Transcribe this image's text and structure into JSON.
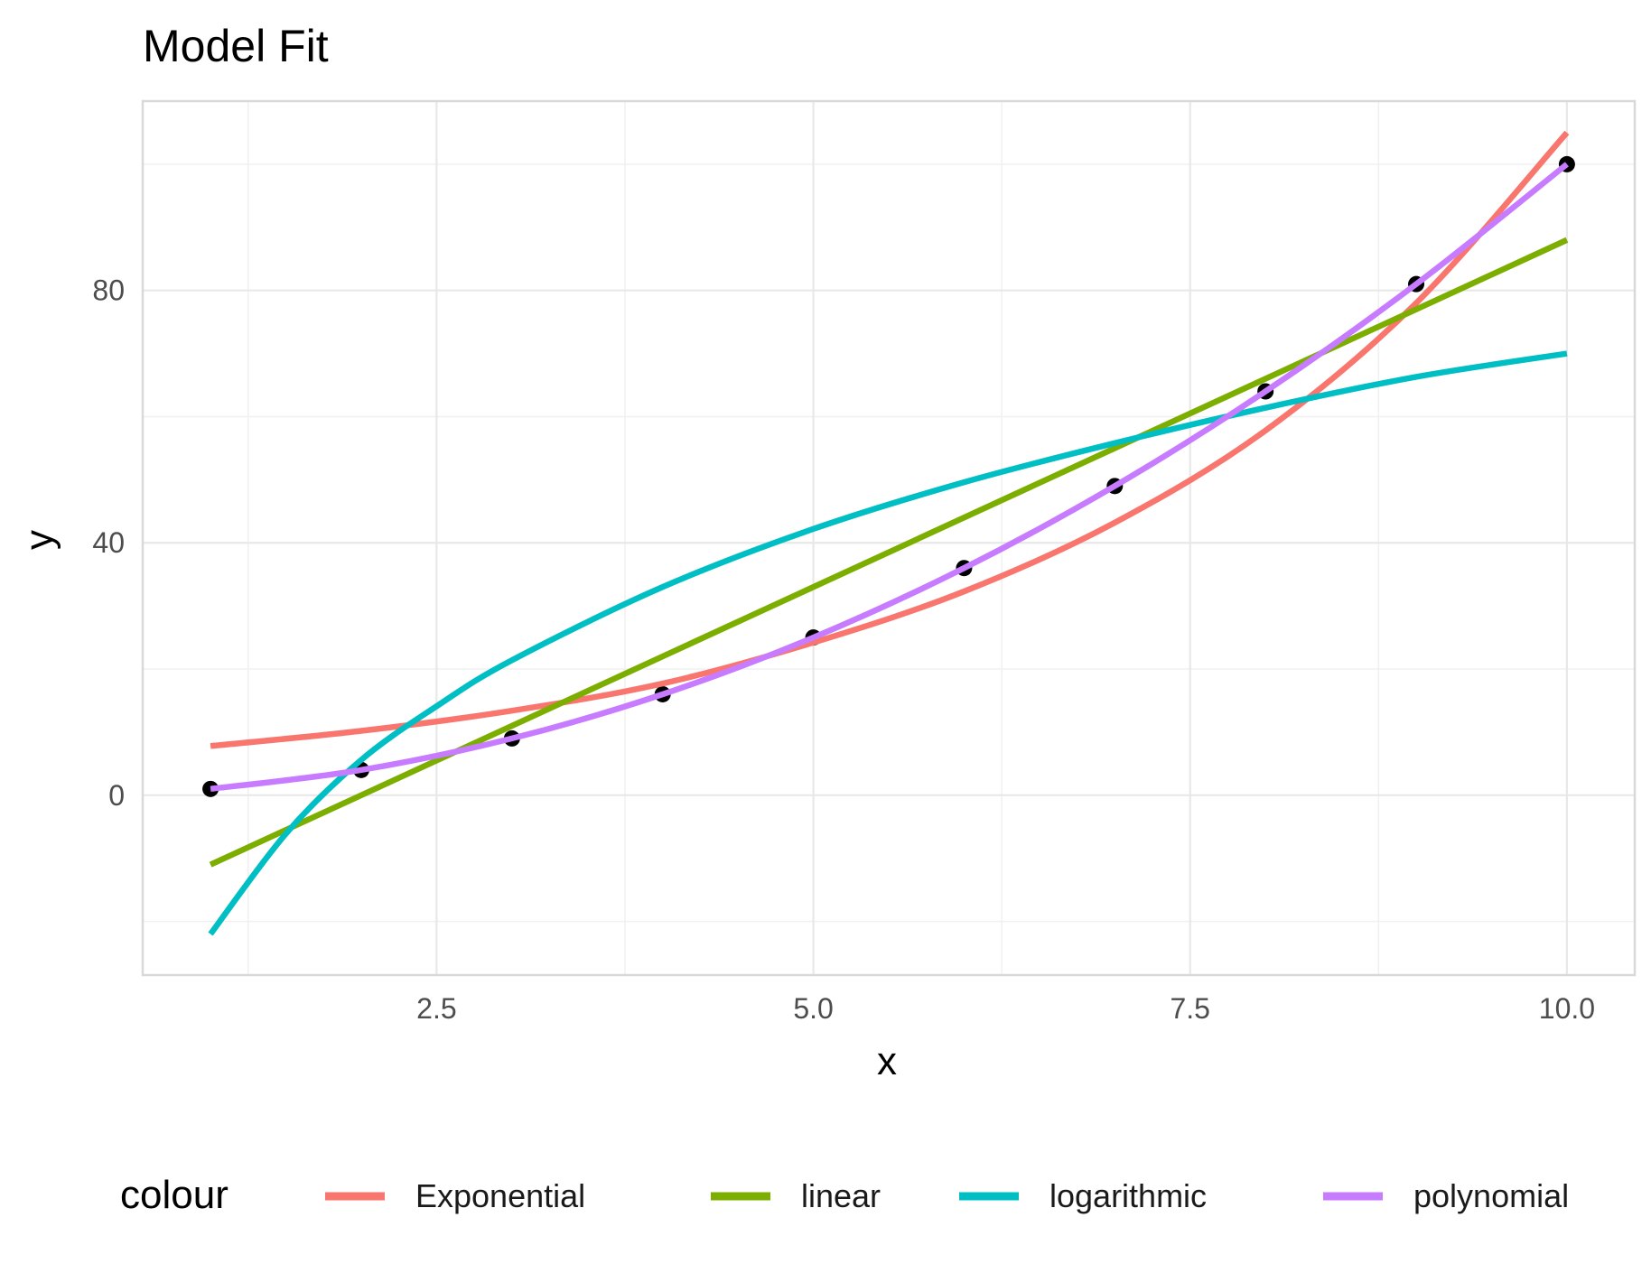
{
  "chart_data": {
    "type": "line",
    "title": "Model Fit",
    "xlabel": "x",
    "ylabel": "y",
    "xlim": [
      0.55,
      10.45
    ],
    "ylim": [
      -28.5,
      110
    ],
    "x_ticks": [
      2.5,
      5.0,
      7.5,
      10.0
    ],
    "x_tick_labels": [
      "2.5",
      "5.0",
      "7.5",
      "10.0"
    ],
    "y_ticks": [
      0,
      40,
      80
    ],
    "y_tick_labels": [
      "0",
      "40",
      "80"
    ],
    "grid": true,
    "legend": {
      "title": "colour",
      "position": "bottom"
    },
    "points": {
      "x": [
        1,
        2,
        3,
        4,
        5,
        6,
        7,
        8,
        9,
        10
      ],
      "y": [
        1,
        4,
        9,
        16,
        25,
        36,
        49,
        64,
        81,
        100
      ],
      "color": "#000000"
    },
    "series": [
      {
        "name": "Exponential",
        "color": "#F8766D",
        "x": [
          1,
          2,
          3,
          4,
          5,
          6,
          7,
          8,
          9,
          10
        ],
        "y": [
          7.8,
          10.2,
          13.4,
          17.7,
          24.2,
          32.3,
          43.2,
          57.8,
          78.0,
          105
        ]
      },
      {
        "name": "linear",
        "color": "#7CAE00",
        "x": [
          1,
          10
        ],
        "y": [
          -11,
          88
        ]
      },
      {
        "name": "logarithmic",
        "color": "#00BFC4",
        "x": [
          1,
          1.5,
          2,
          2.5,
          3,
          4,
          5,
          6,
          7,
          8,
          9,
          10
        ],
        "y": [
          -22,
          -6.1,
          5.6,
          14.1,
          21.4,
          33.0,
          42.2,
          49.6,
          55.8,
          61.4,
          66.3,
          70.0
        ]
      },
      {
        "name": "polynomial",
        "color": "#C77CFF",
        "x": [
          1,
          2,
          3,
          4,
          5,
          6,
          7,
          8,
          9,
          10
        ],
        "y": [
          1,
          4,
          9,
          16,
          25,
          36,
          49,
          64,
          81,
          100
        ]
      }
    ]
  }
}
